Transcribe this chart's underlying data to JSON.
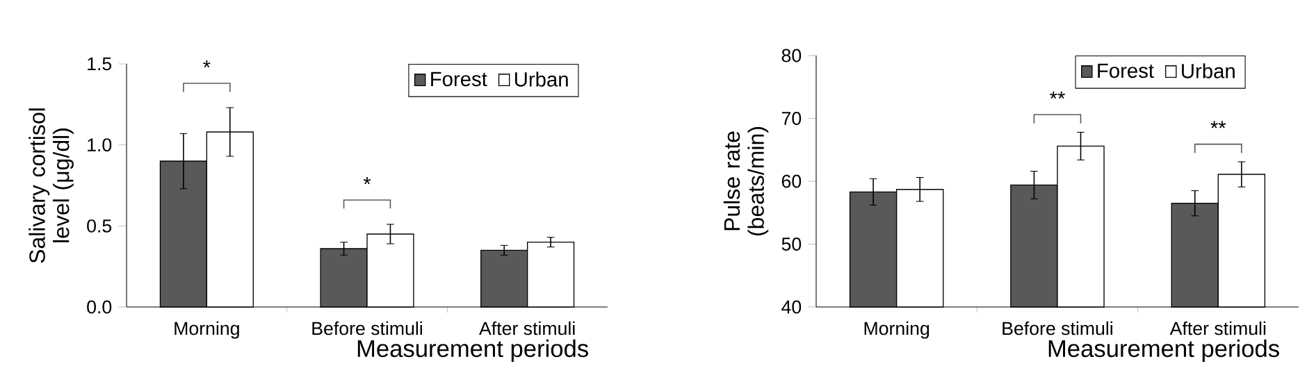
{
  "chart_data": [
    {
      "type": "bar",
      "categories": [
        "Morning",
        "Before stimuli",
        "After stimuli"
      ],
      "xlabel": "Measurement periods",
      "ylabel": "Salivary cortisol level (μg/dl)",
      "series": [
        {
          "name": "Forest",
          "color": "#595959",
          "values": [
            0.9,
            0.36,
            0.35
          ],
          "errors": [
            0.17,
            0.04,
            0.03
          ]
        },
        {
          "name": "Urban",
          "color": "#ffffff",
          "values": [
            1.08,
            0.45,
            0.4
          ],
          "errors": [
            0.15,
            0.06,
            0.03
          ]
        }
      ],
      "ylim": [
        0,
        1.5
      ],
      "yticks": [
        {
          "value": 0,
          "label": "0.0"
        },
        {
          "value": 0.5,
          "label": "0.5"
        },
        {
          "value": 1.0,
          "label": "1.0"
        },
        1.5
      ],
      "legend": "top right",
      "annotations": [
        "*",
        "*"
      ]
    },
    {
      "type": "bar",
      "categories": [
        "Morning",
        "Before stimuli",
        "After stimuli"
      ],
      "xlabel": "Measurement periods",
      "ylabel": "Pulse rate (beats/min)",
      "series": [
        {
          "name": "Forest",
          "color": "#595959",
          "values": [
            58.3,
            59.4,
            56.5
          ],
          "errors": [
            2.1,
            2.2,
            2.0
          ]
        },
        {
          "name": "Urban",
          "color": "#ffffff",
          "values": [
            58.7,
            65.6,
            61.1
          ],
          "errors": [
            1.9,
            2.2,
            2.0
          ]
        }
      ],
      "ylim": [
        40,
        80
      ],
      "yticks": [
        40,
        50,
        60,
        70,
        80
      ],
      "legend": "top right",
      "annotations": [
        "**",
        "**"
      ]
    }
  ]
}
